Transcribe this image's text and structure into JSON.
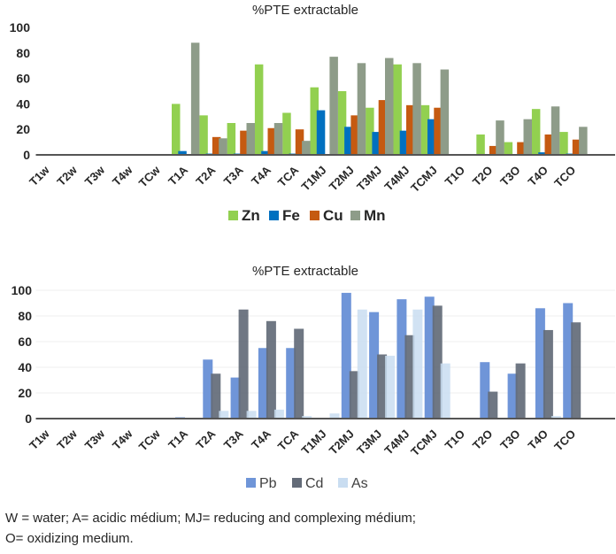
{
  "chart_data": [
    {
      "type": "bar",
      "title": "%PTE extractable",
      "xlabel": "",
      "ylabel": "",
      "ylim": [
        0,
        100
      ],
      "yticks": [
        "0",
        "20",
        "40",
        "60",
        "80",
        "100"
      ],
      "grid": false,
      "legend": "bottom",
      "categories": [
        "T1w",
        "T2w",
        "T3w",
        "T4w",
        "TCw",
        "T1A",
        "T2A",
        "T3A",
        "T4A",
        "TCA",
        "T1MJ",
        "T2MJ",
        "T3MJ",
        "T4MJ",
        "TCMJ",
        "T1O",
        "T2O",
        "T3O",
        "T4O",
        "TCO"
      ],
      "series": [
        {
          "name": "Zn",
          "color": "#92d050",
          "values": [
            0,
            0,
            0,
            0,
            0,
            40,
            31,
            25,
            71,
            33,
            53,
            50,
            37,
            71,
            39,
            0,
            16,
            10,
            36,
            18
          ]
        },
        {
          "name": "Fe",
          "color": "#0070c0",
          "values": [
            0,
            0,
            0,
            0,
            0,
            3,
            1,
            1,
            3,
            1,
            35,
            22,
            18,
            19,
            28,
            0,
            0,
            0,
            2,
            1
          ]
        },
        {
          "name": "Cu",
          "color": "#c55a11",
          "values": [
            0,
            0,
            0,
            0,
            0,
            0,
            14,
            19,
            21,
            20,
            0,
            31,
            43,
            39,
            37,
            0,
            7,
            10,
            16,
            12
          ]
        },
        {
          "name": "Mn",
          "color": "#8e9c89",
          "values": [
            0,
            0,
            0,
            0,
            0,
            88,
            13,
            25,
            25,
            11,
            77,
            72,
            76,
            72,
            67,
            0,
            27,
            28,
            38,
            22
          ]
        }
      ]
    },
    {
      "type": "bar",
      "title": "%PTE extractable",
      "xlabel": "",
      "ylabel": "",
      "ylim": [
        0,
        100
      ],
      "yticks": [
        "0",
        "20",
        "40",
        "60",
        "80",
        "100"
      ],
      "grid": true,
      "legend": "bottom",
      "categories": [
        "T1w",
        "T2w",
        "T3w",
        "T4w",
        "TCw",
        "T1A",
        "T2A",
        "T3A",
        "T4A",
        "TCA",
        "T1MJ",
        "T2MJ",
        "T3MJ",
        "T4MJ",
        "TCMJ",
        "T1O",
        "T2O",
        "T3O",
        "T4O",
        "TCO"
      ],
      "series": [
        {
          "name": "Pb",
          "color": "#6f95d8",
          "values": [
            0,
            0,
            0,
            0,
            0,
            1,
            46,
            32,
            55,
            55,
            0,
            98,
            83,
            93,
            95,
            0,
            44,
            35,
            86,
            90
          ]
        },
        {
          "name": "Cd",
          "color": "#636b78",
          "values": [
            0,
            0,
            0,
            0,
            0,
            0,
            35,
            85,
            76,
            70,
            0,
            37,
            50,
            65,
            88,
            0,
            21,
            43,
            69,
            75
          ]
        },
        {
          "name": "As",
          "color": "#c9ddf1",
          "values": [
            0,
            0,
            0,
            0,
            0,
            0,
            6,
            6,
            7,
            2,
            4,
            85,
            49,
            85,
            43,
            0,
            0,
            0.5,
            2,
            0
          ]
        }
      ]
    }
  ],
  "footnote": {
    "line1": "W = water; A= acidic médium; MJ= reducing and complexing  médium;",
    "line2": "O= oxidizing medium."
  }
}
